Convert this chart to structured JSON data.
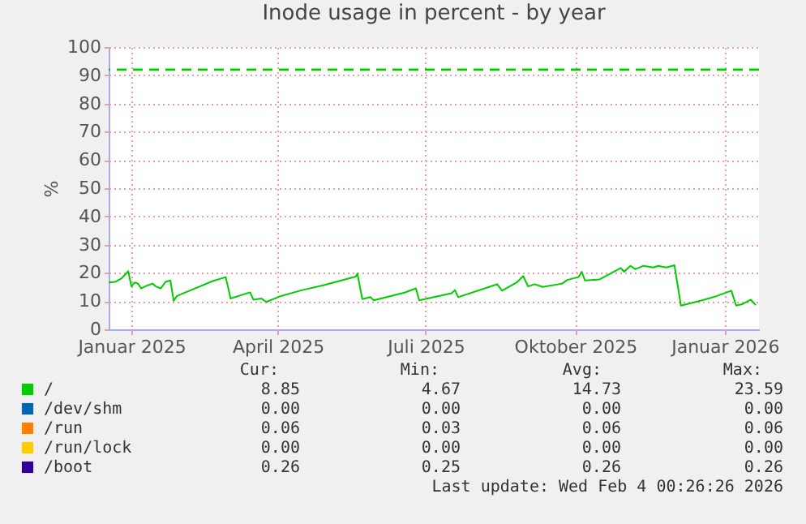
{
  "chart_data": {
    "type": "line",
    "title": "Inode usage in percent - by year",
    "ylabel": "%",
    "xlim": [
      "2024-12-18",
      "2026-01-22"
    ],
    "xticks": [
      {
        "value": "2025-01-01",
        "label": "Januar 2025"
      },
      {
        "value": "2025-04-01",
        "label": "April 2025"
      },
      {
        "value": "2025-07-01",
        "label": "Juli 2025"
      },
      {
        "value": "2025-10-01",
        "label": "Oktober 2025"
      },
      {
        "value": "2026-01-01",
        "label": "Januar 2026"
      }
    ],
    "ylim": [
      0,
      100
    ],
    "yticks": [
      0,
      10,
      20,
      30,
      40,
      50,
      60,
      70,
      80,
      90,
      100
    ],
    "grid": true,
    "legend": "bottom",
    "ref_lines": [
      {
        "axis": "y",
        "value": 92,
        "color": "#00cc00",
        "line_style": "dashed"
      }
    ],
    "series": [
      {
        "name": "/",
        "color": "#00cc00",
        "x": [
          "2024-12-18",
          "2024-12-22",
          "2024-12-26",
          "2024-12-30",
          "2025-01-01",
          "2025-01-03",
          "2025-01-05",
          "2025-01-07",
          "2025-01-11",
          "2025-01-14",
          "2025-01-16",
          "2025-01-19",
          "2025-01-22",
          "2025-01-25",
          "2025-01-27",
          "2025-01-29",
          "2025-02-20",
          "2025-02-28",
          "2025-03-03",
          "2025-03-15",
          "2025-03-17",
          "2025-03-22",
          "2025-03-25",
          "2025-04-03",
          "2025-04-16",
          "2025-04-29",
          "2025-05-19",
          "2025-05-20",
          "2025-05-23",
          "2025-05-28",
          "2025-05-30",
          "2025-06-18",
          "2025-06-25",
          "2025-06-27",
          "2025-07-17",
          "2025-07-19",
          "2025-07-21",
          "2025-08-12",
          "2025-08-14",
          "2025-08-17",
          "2025-08-26",
          "2025-08-30",
          "2025-09-02",
          "2025-09-06",
          "2025-09-11",
          "2025-09-23",
          "2025-09-26",
          "2025-10-03",
          "2025-10-05",
          "2025-10-07",
          "2025-10-16",
          "2025-10-26",
          "2025-10-29",
          "2025-10-31",
          "2025-11-04",
          "2025-11-07",
          "2025-11-12",
          "2025-11-18",
          "2025-11-21",
          "2025-11-26",
          "2025-12-01",
          "2025-12-05",
          "2025-12-18",
          "2025-12-25",
          "2026-01-05",
          "2026-01-08",
          "2026-01-12",
          "2026-01-17",
          "2026-01-20"
        ],
        "values": [
          16.6,
          16.8,
          18.1,
          20.6,
          15.2,
          16.6,
          16.2,
          14.5,
          15.6,
          16.2,
          15.2,
          14.5,
          16.8,
          17.3,
          10.1,
          11.8,
          17.1,
          18.5,
          10.9,
          13.1,
          10.5,
          10.9,
          9.7,
          11.8,
          13.9,
          15.6,
          18.7,
          19.8,
          10.7,
          11.4,
          10.3,
          13.0,
          14.5,
          10.3,
          12.8,
          13.9,
          11.4,
          15.6,
          16.0,
          13.7,
          16.6,
          18.9,
          15.2,
          16.0,
          15.0,
          16.2,
          17.5,
          18.5,
          20.4,
          17.3,
          17.7,
          20.8,
          21.7,
          20.4,
          22.5,
          21.3,
          22.5,
          21.9,
          22.5,
          21.9,
          22.7,
          8.4,
          10.3,
          11.4,
          13.7,
          8.4,
          9.0,
          10.5,
          8.6
        ]
      },
      {
        "name": "/dev/shm",
        "color": "#0066b3"
      },
      {
        "name": "/run",
        "color": "#ff8000"
      },
      {
        "name": "/run/lock",
        "color": "#ffcc00"
      },
      {
        "name": "/boot",
        "color": "#330099"
      }
    ],
    "annotations": [
      "Cur:",
      "Min:",
      "Avg:",
      "Max:",
      "8.85",
      "4.67",
      "14.73",
      "23.59",
      "0.00",
      "0.00",
      "0.00",
      "0.00",
      "0.06",
      "0.03",
      "0.06",
      "0.06",
      "0.00",
      "0.00",
      "0.00",
      "0.00",
      "0.26",
      "0.25",
      "0.26",
      "0.26",
      "Last update: Wed Feb  4 00:26:26 2026"
    ]
  }
}
